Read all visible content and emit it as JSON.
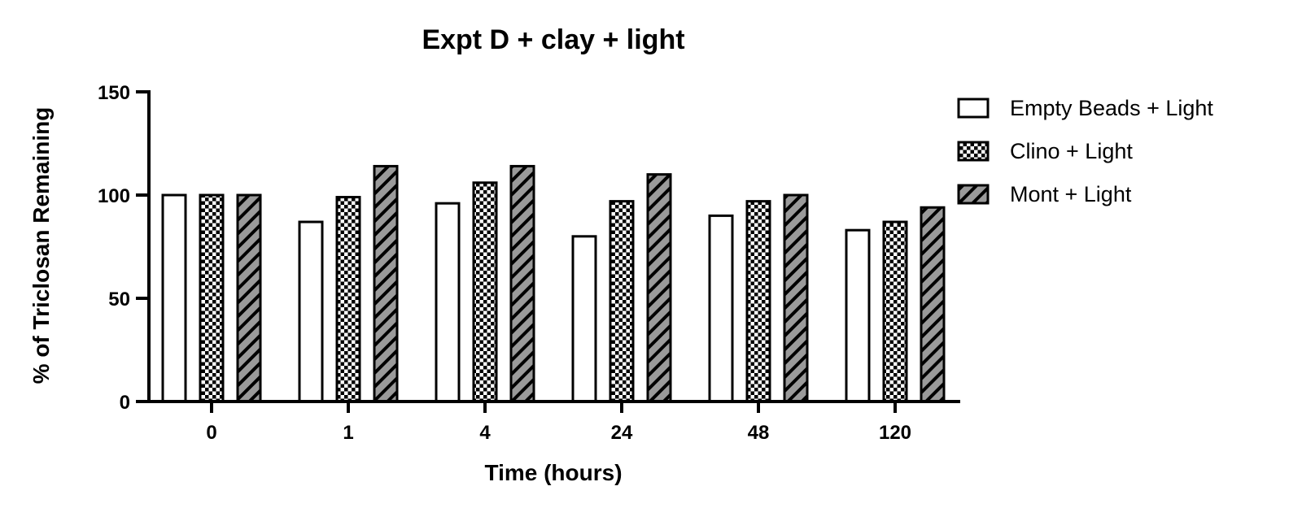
{
  "chart_data": {
    "type": "bar",
    "title": "Expt D + clay + light",
    "xlabel": "Time (hours)",
    "ylabel": "% of Triclosan Remaining",
    "categories": [
      "0",
      "1",
      "4",
      "24",
      "48",
      "120"
    ],
    "ylim": [
      0,
      150
    ],
    "yticks": [
      "0",
      "50",
      "100",
      "150"
    ],
    "grid": false,
    "legend_position": "top-right",
    "series": [
      {
        "name": "Empty Beads + Light",
        "fill": "white",
        "values": [
          100,
          87,
          96,
          80,
          90,
          83
        ]
      },
      {
        "name": "Clino + Light",
        "fill": "checkerboard",
        "values": [
          100,
          99,
          106,
          97,
          97,
          87
        ]
      },
      {
        "name": "Mont + Light",
        "fill": "diagonal-hatch-gray",
        "values": [
          100,
          114,
          114,
          110,
          100,
          94
        ]
      }
    ],
    "colors": {
      "outline": "#000000",
      "hatch_fill": "#9a9a9a",
      "checker_light": "#ffffff",
      "checker_dark": "#000000"
    }
  }
}
